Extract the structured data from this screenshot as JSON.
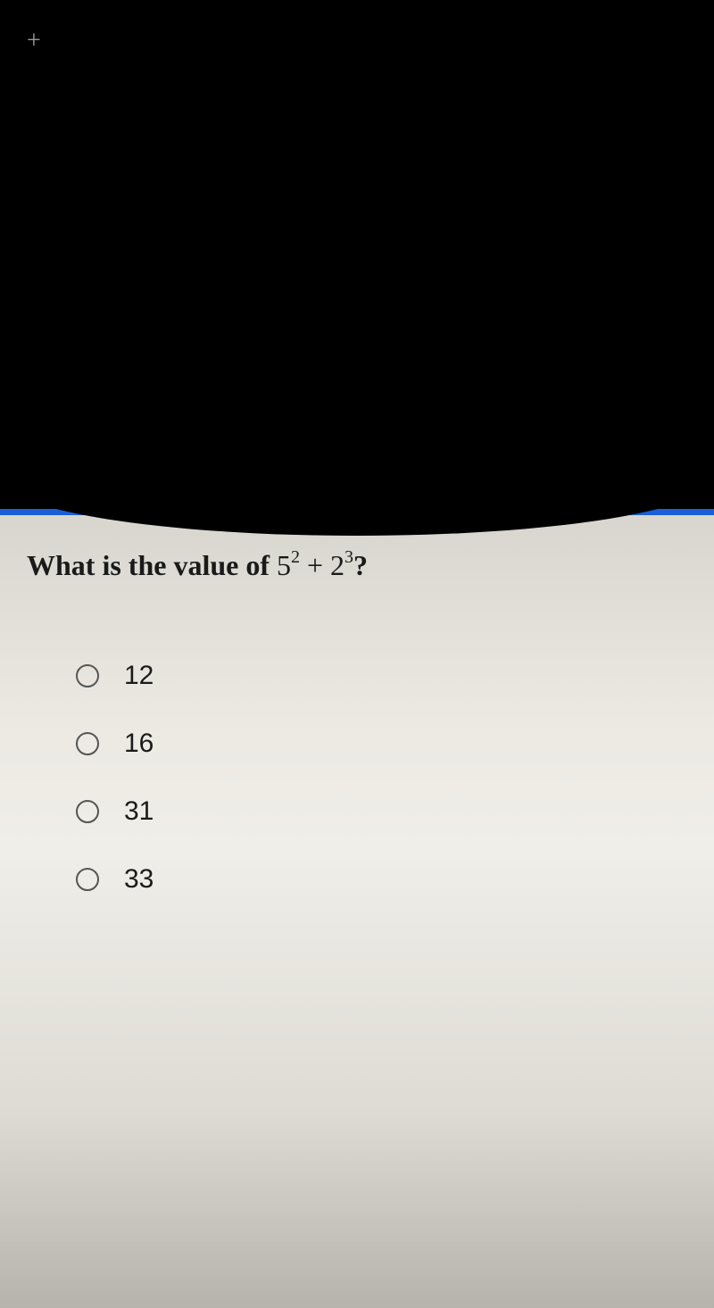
{
  "header": {
    "plus_label": "+"
  },
  "question": {
    "prompt_prefix": "What is the value of ",
    "base1": "5",
    "exp1": "2",
    "operator": " + ",
    "base2": "2",
    "exp2": "3",
    "prompt_suffix": "?"
  },
  "options": [
    {
      "label": "12"
    },
    {
      "label": "16"
    },
    {
      "label": "31"
    },
    {
      "label": "33"
    }
  ],
  "colors": {
    "blue_bar": "#1a5fd8",
    "blackout": "#000000",
    "text": "#1a1a1a",
    "radio_border": "#555555"
  }
}
